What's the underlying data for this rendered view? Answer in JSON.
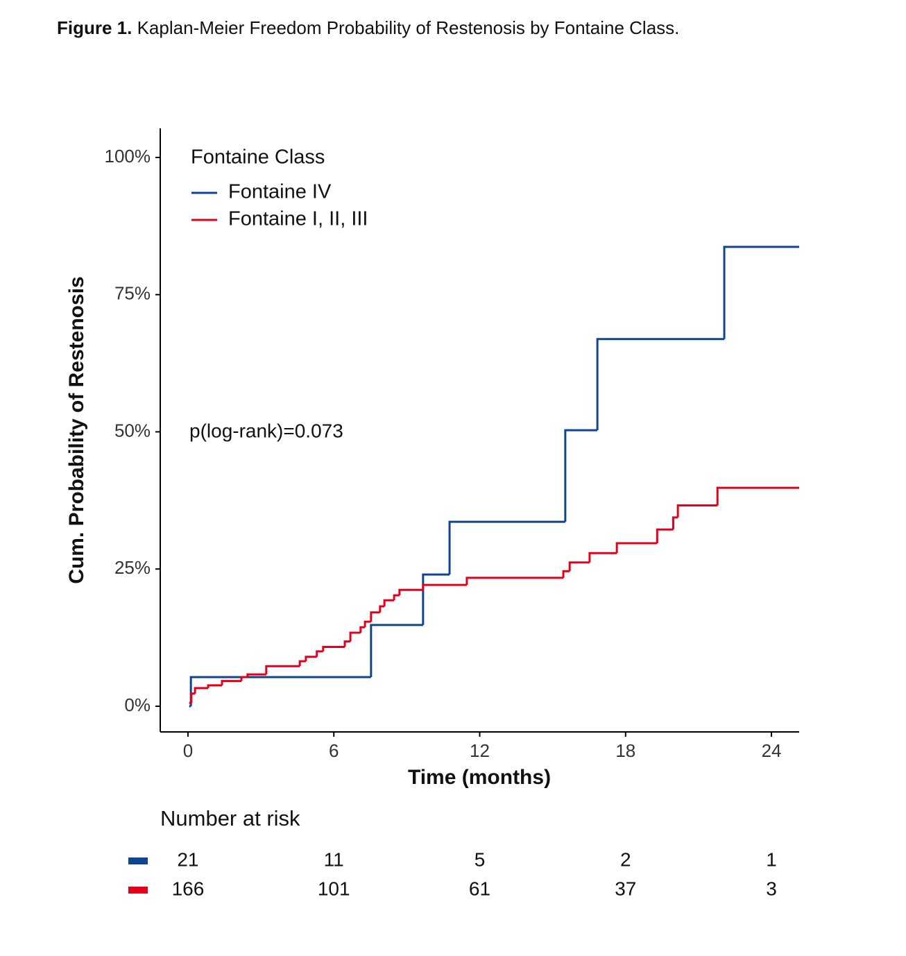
{
  "chart_data": {
    "type": "step",
    "caption": {
      "label": "Figure 1.",
      "text": "Kaplan-Meier Freedom Probability of Restenosis by Fontaine Class."
    },
    "x_label": "Time (months)",
    "y_label": "Cum. Probability of Restenosis",
    "annotation": "p(log-rank)=0.073",
    "legend": {
      "title": "Fontaine Class",
      "position": "top-left"
    },
    "xlim": [
      -1.14,
      25.14
    ],
    "ylim": [
      -4.68,
      105.3
    ],
    "xticks": [
      0,
      6,
      12,
      18,
      24
    ],
    "yticks": [
      {
        "value": 0,
        "label": "0%"
      },
      {
        "value": 25,
        "label": "25%"
      },
      {
        "value": 50,
        "label": "50%"
      },
      {
        "value": 75,
        "label": "75%"
      },
      {
        "value": 100,
        "label": "100%"
      }
    ],
    "series": [
      {
        "name": "Fontaine IV",
        "color": "#0f458f",
        "x": [
          0.05,
          0.12,
          7.53,
          9.67,
          10.76,
          15.52,
          16.84,
          22.06
        ],
        "values": [
          0,
          5.3,
          14.8,
          24.0,
          33.6,
          50.3,
          66.9,
          83.7
        ]
      },
      {
        "name": "Fontaine I, II, III",
        "color": "#e2001a",
        "x": [
          0.05,
          0.14,
          0.29,
          0.83,
          1.4,
          2.2,
          2.45,
          3.22,
          4.6,
          4.85,
          5.3,
          5.56,
          6.45,
          6.68,
          7.1,
          7.28,
          7.53,
          7.9,
          8.08,
          8.48,
          8.7,
          9.67,
          11.47,
          15.44,
          15.7,
          16.52,
          17.64,
          19.3,
          19.96,
          20.15,
          21.78
        ],
        "values": [
          0.6,
          2.3,
          3.3,
          3.8,
          4.6,
          5.3,
          5.8,
          7.3,
          8.2,
          9.0,
          10.0,
          10.8,
          11.8,
          13.4,
          14.4,
          15.4,
          17.1,
          18.2,
          19.3,
          20.2,
          21.2,
          22.1,
          23.4,
          24.6,
          26.2,
          27.9,
          29.7,
          32.2,
          34.4,
          36.6,
          39.8
        ]
      }
    ],
    "risk_table": {
      "title": "Number at risk",
      "rows": [
        {
          "color": "#0f458f",
          "values": [
            21,
            11,
            5,
            2,
            1
          ]
        },
        {
          "color": "#e2001a",
          "values": [
            166,
            101,
            61,
            37,
            3
          ]
        }
      ]
    }
  }
}
